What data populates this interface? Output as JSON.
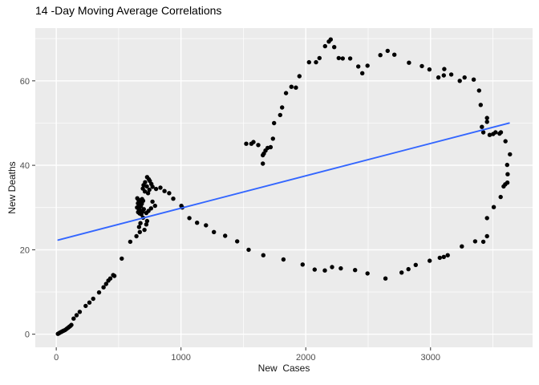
{
  "chart_data": {
    "type": "scatter",
    "title": "14 -Day Moving Average Correlations",
    "xlabel": "New  Cases",
    "ylabel": "New Deaths",
    "x_ticks": [
      0,
      1000,
      2000,
      3000
    ],
    "x_tick_labels": [
      "0",
      "1000",
      "2000",
      "3000"
    ],
    "x_minor_ticks": [
      500,
      1500,
      2500,
      3500
    ],
    "y_ticks": [
      0,
      20,
      40,
      60
    ],
    "y_tick_labels": [
      "0",
      "20",
      "40",
      "60"
    ],
    "y_minor_ticks": [
      10,
      30,
      50,
      70
    ],
    "xlim": [
      -168,
      3818
    ],
    "ylim": [
      -3.1,
      72.5
    ],
    "grid": true,
    "legend": "none",
    "panel_bg": "#EBEBEB",
    "grid_color": "#FFFFFF",
    "point_color": "#000000",
    "tick_label_color": "#4d4d4d",
    "tick_mark_color": "#333333",
    "trend": {
      "type": "linear",
      "x1": 15,
      "y1": 22.3,
      "x2": 3630,
      "y2": 50.0,
      "color": "#3366FF"
    },
    "points": [
      [
        13,
        0.1
      ],
      [
        22,
        0.25
      ],
      [
        30,
        0.4
      ],
      [
        40,
        0.55
      ],
      [
        50,
        0.7
      ],
      [
        60,
        0.85
      ],
      [
        71,
        1.0
      ],
      [
        82,
        1.25
      ],
      [
        93,
        1.5
      ],
      [
        104,
        1.75
      ],
      [
        113,
        1.95
      ],
      [
        121,
        2.2
      ],
      [
        139,
        3.7
      ],
      [
        163,
        4.5
      ],
      [
        188,
        5.3
      ],
      [
        236,
        6.7
      ],
      [
        266,
        7.5
      ],
      [
        296,
        8.4
      ],
      [
        343,
        9.9
      ],
      [
        379,
        11.1
      ],
      [
        400,
        11.9
      ],
      [
        418,
        12.7
      ],
      [
        433,
        13.2
      ],
      [
        456,
        14.0
      ],
      [
        466,
        13.8
      ],
      [
        525,
        17.9
      ],
      [
        593,
        21.9
      ],
      [
        643,
        23.2
      ],
      [
        670,
        24.2
      ],
      [
        722,
        26.0
      ],
      [
        664,
        25.4
      ],
      [
        707,
        24.7
      ],
      [
        675,
        26.3
      ],
      [
        696,
        27.6
      ],
      [
        728,
        26.8
      ],
      [
        722,
        28.7
      ],
      [
        650,
        32.2
      ],
      [
        660,
        31.8
      ],
      [
        672,
        31.5
      ],
      [
        655,
        31.0
      ],
      [
        665,
        30.6
      ],
      [
        678,
        30.3
      ],
      [
        648,
        30.0
      ],
      [
        662,
        29.6
      ],
      [
        674,
        29.3
      ],
      [
        656,
        28.9
      ],
      [
        668,
        28.6
      ],
      [
        682,
        28.4
      ],
      [
        692,
        29.0
      ],
      [
        702,
        29.6
      ],
      [
        686,
        30.9
      ],
      [
        696,
        31.6
      ],
      [
        688,
        32.0
      ],
      [
        739,
        29.2
      ],
      [
        760,
        29.8
      ],
      [
        771,
        31.4
      ],
      [
        792,
        30.4
      ],
      [
        728,
        37.2
      ],
      [
        742,
        36.7
      ],
      [
        712,
        36.0
      ],
      [
        750,
        36.3
      ],
      [
        700,
        35.3
      ],
      [
        762,
        35.6
      ],
      [
        726,
        35.0
      ],
      [
        772,
        34.9
      ],
      [
        694,
        34.5
      ],
      [
        746,
        34.2
      ],
      [
        710,
        33.8
      ],
      [
        736,
        33.4
      ],
      [
        800,
        34.4
      ],
      [
        835,
        34.7
      ],
      [
        868,
        33.9
      ],
      [
        905,
        33.4
      ],
      [
        938,
        32.1
      ],
      [
        1003,
        30.4
      ],
      [
        1010,
        30.0
      ],
      [
        1067,
        27.5
      ],
      [
        1129,
        26.4
      ],
      [
        1200,
        25.8
      ],
      [
        1264,
        24.2
      ],
      [
        1354,
        23.3
      ],
      [
        1450,
        22.0
      ],
      [
        1542,
        20.0
      ],
      [
        1660,
        18.7
      ],
      [
        1821,
        17.7
      ],
      [
        1975,
        16.5
      ],
      [
        2071,
        15.3
      ],
      [
        2153,
        15.1
      ],
      [
        2211,
        15.9
      ],
      [
        2281,
        15.6
      ],
      [
        2395,
        15.2
      ],
      [
        2495,
        14.4
      ],
      [
        2639,
        13.2
      ],
      [
        2768,
        14.6
      ],
      [
        2823,
        15.4
      ],
      [
        2881,
        16.4
      ],
      [
        2993,
        17.4
      ],
      [
        3074,
        18.1
      ],
      [
        3106,
        18.3
      ],
      [
        3138,
        18.7
      ],
      [
        3251,
        20.8
      ],
      [
        3358,
        22.0
      ],
      [
        3423,
        21.9
      ],
      [
        3453,
        23.2
      ],
      [
        3453,
        27.5
      ],
      [
        3507,
        30.1
      ],
      [
        3562,
        32.5
      ],
      [
        3586,
        35.0
      ],
      [
        3599,
        35.5
      ],
      [
        3616,
        35.9
      ],
      [
        3618,
        37.9
      ],
      [
        3614,
        40.1
      ],
      [
        3637,
        42.6
      ],
      [
        3601,
        45.7
      ],
      [
        3564,
        47.8
      ],
      [
        3553,
        47.5
      ],
      [
        3521,
        47.8
      ],
      [
        3502,
        47.4
      ],
      [
        3474,
        47.2
      ],
      [
        3423,
        47.8
      ],
      [
        3412,
        49.1
      ],
      [
        3453,
        50.3
      ],
      [
        3453,
        51.2
      ],
      [
        3402,
        54.3
      ],
      [
        3389,
        57.7
      ],
      [
        3346,
        60.3
      ],
      [
        3273,
        60.8
      ],
      [
        3234,
        60.0
      ],
      [
        3166,
        61.5
      ],
      [
        3110,
        62.8
      ],
      [
        3106,
        61.3
      ],
      [
        3063,
        60.8
      ],
      [
        2991,
        62.7
      ],
      [
        2931,
        63.5
      ],
      [
        2827,
        64.3
      ],
      [
        2710,
        66.2
      ],
      [
        2656,
        67.1
      ],
      [
        2598,
        66.1
      ],
      [
        2495,
        63.6
      ],
      [
        2453,
        61.8
      ],
      [
        2421,
        63.4
      ],
      [
        2356,
        65.3
      ],
      [
        2296,
        65.3
      ],
      [
        2264,
        65.4
      ],
      [
        2228,
        68.0
      ],
      [
        2200,
        69.8
      ],
      [
        2185,
        69.3
      ],
      [
        2155,
        68.2
      ],
      [
        2110,
        65.4
      ],
      [
        2082,
        64.4
      ],
      [
        2026,
        64.4
      ],
      [
        1949,
        61.1
      ],
      [
        1921,
        58.4
      ],
      [
        1885,
        58.6
      ],
      [
        1842,
        57.1
      ],
      [
        1810,
        53.7
      ],
      [
        1795,
        51.9
      ],
      [
        1746,
        50.0
      ],
      [
        1737,
        46.3
      ],
      [
        1718,
        44.3
      ],
      [
        1694,
        44.1
      ],
      [
        1677,
        43.5
      ],
      [
        1664,
        42.8
      ],
      [
        1656,
        42.4
      ],
      [
        1656,
        40.4
      ],
      [
        1619,
        44.8
      ],
      [
        1581,
        45.5
      ],
      [
        1564,
        45.1
      ],
      [
        1523,
        45.1
      ]
    ]
  }
}
